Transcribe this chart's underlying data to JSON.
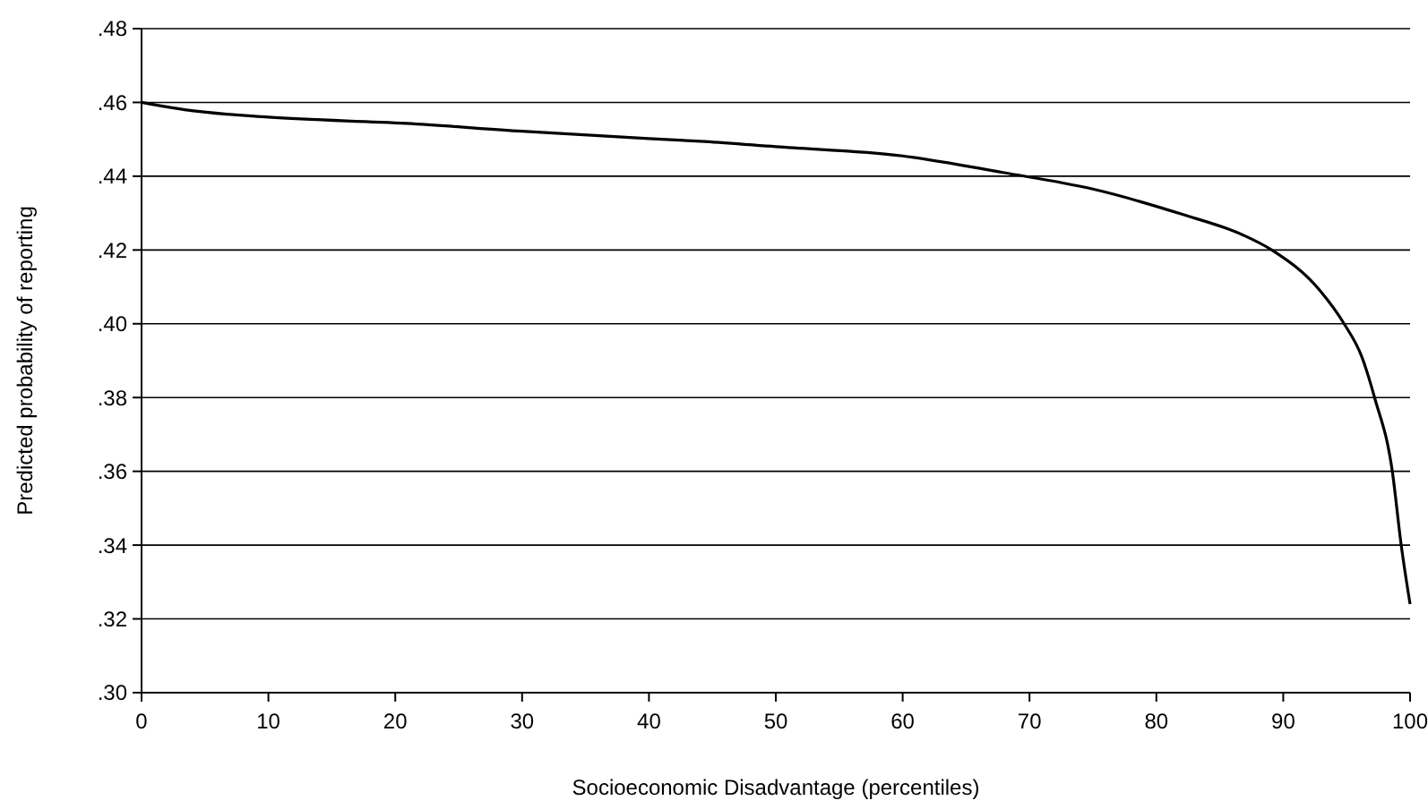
{
  "chart_data": {
    "type": "line",
    "xlabel": "Socioeconomic Disadvantage (percentiles)",
    "ylabel": "Predicted probability of reporting",
    "x": [
      0,
      3.4,
      10,
      20.9,
      30,
      40,
      44.4,
      50,
      60,
      67.9,
      75,
      82,
      86.8,
      89.1,
      92.9,
      94.8,
      96.2,
      97.2,
      98.6,
      99.3,
      100
    ],
    "series": [
      {
        "color": "#000000",
        "values": [
          0.46,
          0.458,
          0.456,
          0.4543,
          0.4522,
          0.4502,
          0.4494,
          0.448,
          0.4455,
          0.441,
          0.4365,
          0.4297,
          0.4241,
          0.42,
          0.409,
          0.4,
          0.391,
          0.38,
          0.36,
          0.34,
          0.324
        ]
      }
    ],
    "xlim": [
      0,
      100
    ],
    "xticks": [
      0,
      10,
      20,
      30,
      40,
      50,
      60,
      70,
      80,
      90,
      100
    ],
    "ylim": [
      0.3,
      0.48
    ],
    "yticks": [
      {
        "value": 0.3,
        "label": ".30"
      },
      {
        "value": 0.32,
        "label": ".32"
      },
      {
        "value": 0.34,
        "label": ".34"
      },
      {
        "value": 0.36,
        "label": ".36"
      },
      {
        "value": 0.38,
        "label": ".38"
      },
      {
        "value": 0.4,
        "label": ".40"
      },
      {
        "value": 0.42,
        "label": ".42"
      },
      {
        "value": 0.44,
        "label": ".44"
      },
      {
        "value": 0.46,
        "label": ".46"
      },
      {
        "value": 0.48,
        "label": ".48"
      }
    ],
    "grid": "y",
    "marker": "none",
    "line_style": "solid"
  }
}
